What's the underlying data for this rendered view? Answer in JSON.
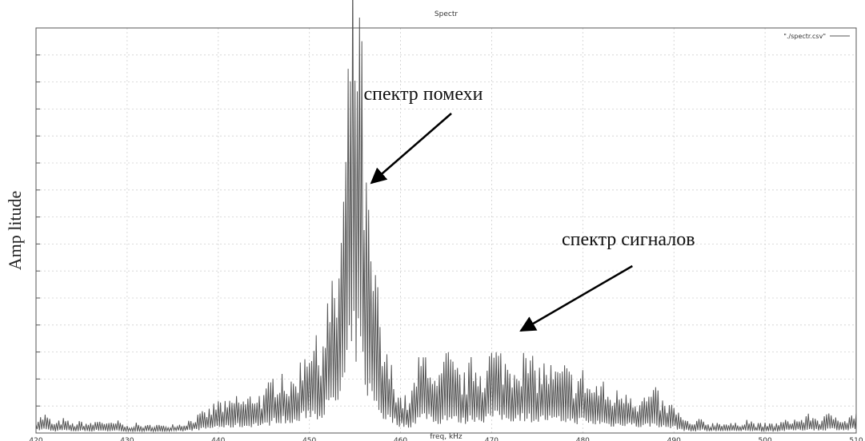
{
  "chart_data": {
    "type": "line",
    "title": "Spectr",
    "xlabel": "freq, kHz",
    "ylabel": "Amp litude",
    "xlim": [
      420,
      510
    ],
    "ylim": [
      0,
      1.0
    ],
    "x_ticks": [
      420,
      430,
      440,
      450,
      460,
      470,
      480,
      490,
      500,
      510
    ],
    "y_ticks_count": 15,
    "grid": true,
    "legend": {
      "position": "top-right",
      "entries": [
        "\"./spectr.csv\""
      ]
    },
    "annotations": [
      {
        "text": "спектр помехи",
        "arrow_to": [
          456.8,
          0.7
        ],
        "text_anchor_x": 462.5
      },
      {
        "text": "спектр сигналов",
        "arrow_to": [
          473.2,
          0.22
        ],
        "text_anchor_x": 485.0
      }
    ],
    "series": [
      {
        "name": "\"./spectr.csv\"",
        "values_note": "",
        "x": [
          420,
          421,
          422,
          423,
          424,
          425,
          426,
          427,
          428,
          429,
          430,
          431,
          432,
          433,
          434,
          435,
          436,
          437,
          438,
          439,
          440,
          441,
          442,
          443,
          444,
          445,
          446,
          447,
          448,
          449,
          450,
          451,
          452,
          453,
          454,
          454.5,
          455,
          455.5,
          456,
          456.5,
          457,
          457.5,
          458,
          459,
          460,
          461,
          462,
          463,
          464,
          465,
          466,
          467,
          468,
          469,
          470,
          471,
          472,
          473,
          474,
          475,
          476,
          477,
          478,
          479,
          480,
          481,
          482,
          483,
          484,
          485,
          486,
          487,
          488,
          489,
          490,
          491,
          492,
          493,
          494,
          495,
          496,
          497,
          498,
          499,
          500,
          501,
          502,
          503,
          504,
          505,
          506,
          507,
          508,
          509,
          510
        ],
        "y": [
          0.03,
          0.04,
          0.02,
          0.03,
          0.02,
          0.025,
          0.02,
          0.03,
          0.02,
          0.025,
          0.015,
          0.02,
          0.015,
          0.02,
          0.015,
          0.02,
          0.02,
          0.03,
          0.04,
          0.05,
          0.07,
          0.06,
          0.08,
          0.07,
          0.09,
          0.08,
          0.12,
          0.14,
          0.1,
          0.15,
          0.22,
          0.18,
          0.28,
          0.32,
          0.6,
          0.92,
          0.97,
          0.93,
          0.62,
          0.45,
          0.35,
          0.3,
          0.18,
          0.14,
          0.08,
          0.07,
          0.15,
          0.19,
          0.1,
          0.17,
          0.14,
          0.12,
          0.16,
          0.14,
          0.18,
          0.17,
          0.15,
          0.17,
          0.16,
          0.14,
          0.15,
          0.13,
          0.14,
          0.12,
          0.13,
          0.1,
          0.11,
          0.08,
          0.09,
          0.1,
          0.07,
          0.08,
          0.09,
          0.06,
          0.06,
          0.03,
          0.02,
          0.03,
          0.02,
          0.025,
          0.02,
          0.02,
          0.03,
          0.02,
          0.02,
          0.02,
          0.025,
          0.03,
          0.03,
          0.04,
          0.03,
          0.04,
          0.04,
          0.03,
          0.05
        ]
      }
    ]
  }
}
